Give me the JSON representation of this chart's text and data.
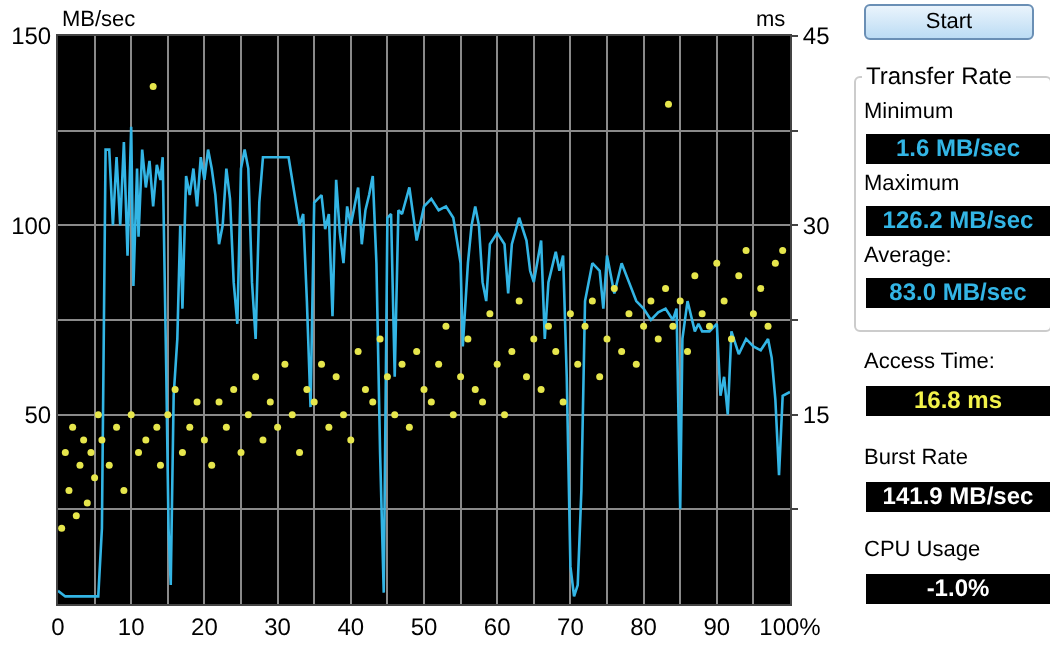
{
  "chart_data": [
    {
      "type": "line",
      "ylabel": "MB/sec",
      "y2label": "ms",
      "grid": true,
      "legend": false,
      "xlim": [
        0,
        100
      ],
      "xticks": [
        0,
        {
          "value": 5,
          "label": null
        },
        10,
        {
          "value": 15,
          "label": null
        },
        20,
        {
          "value": 25,
          "label": null
        },
        30,
        {
          "value": 35,
          "label": null
        },
        40,
        {
          "value": 45,
          "label": null
        },
        50,
        {
          "value": 55,
          "label": null
        },
        60,
        {
          "value": 65,
          "label": null
        },
        70,
        {
          "value": 75,
          "label": null
        },
        80,
        {
          "value": 85,
          "label": null
        },
        90,
        {
          "value": 95,
          "label": null
        },
        {
          "value": 100,
          "label": "100%"
        }
      ],
      "ylim": [
        0,
        150
      ],
      "yticks": [
        {
          "value": 25,
          "label": null
        },
        50,
        {
          "value": 75,
          "label": null
        },
        100,
        {
          "value": 125,
          "label": null
        },
        150
      ],
      "y2lim": [
        0,
        45
      ],
      "y2ticks": [
        {
          "value": 7.5,
          "label": null
        },
        15,
        {
          "value": 22.5,
          "label": null
        },
        30,
        {
          "value": 37.5,
          "label": null
        },
        45
      ],
      "series": [
        {
          "type": "line",
          "color": "#33b5e5",
          "marker": "none",
          "line_style": "solid",
          "x": [
            0,
            1,
            5.5,
            6,
            6.5,
            7,
            7.5,
            8,
            8.5,
            9,
            9.5,
            10,
            10.3,
            10.8,
            11,
            11.5,
            12,
            12.5,
            13,
            13.5,
            14,
            14.3,
            14.8,
            15.1,
            15.4,
            15.8,
            16.3,
            16.7,
            17,
            17.5,
            18,
            18.5,
            19,
            19.5,
            20,
            20.5,
            21,
            21.5,
            22,
            22.5,
            23,
            23.5,
            24,
            24.5,
            25,
            25.5,
            26,
            26.5,
            27,
            27.5,
            28,
            31.5,
            32.5,
            33,
            33.5,
            34,
            34.5,
            35,
            35.5,
            36,
            36.5,
            37,
            37.5,
            38,
            38.5,
            39,
            39.5,
            40,
            40.5,
            41,
            41.5,
            42,
            42.5,
            43,
            43.5,
            44,
            44.5,
            45,
            45.5,
            46,
            46.5,
            47,
            48,
            49,
            50,
            51,
            52,
            53,
            54,
            55,
            55.3,
            56,
            56.5,
            57,
            57.5,
            58,
            58.5,
            59,
            60,
            61,
            61.5,
            62,
            63,
            64,
            64.5,
            65,
            66,
            66.5,
            67,
            68,
            68.5,
            69,
            69.5,
            70,
            70.5,
            71,
            71.5,
            72,
            73,
            74,
            74.5,
            75,
            76,
            77,
            78,
            79,
            80,
            81,
            82,
            83,
            84,
            84.5,
            85,
            85.3,
            86,
            87,
            87.5,
            88,
            89,
            90,
            90.5,
            91,
            91.5,
            92,
            93,
            94,
            95,
            96,
            97,
            97.5,
            98,
            98.5,
            99,
            100
          ],
          "values": [
            3.5,
            2,
            2,
            20,
            120,
            120,
            100,
            118,
            100,
            122,
            92,
            126,
            84,
            115,
            97,
            120,
            110,
            117,
            105,
            116,
            112,
            118,
            60,
            20,
            5,
            55,
            70,
            100,
            78,
            113,
            108,
            115,
            105,
            118,
            112,
            120,
            115,
            108,
            95,
            100,
            115,
            107,
            85,
            74,
            115,
            120,
            115,
            85,
            70,
            106,
            118,
            118,
            106,
            100,
            103,
            80,
            52,
            106,
            107,
            108,
            99,
            103,
            76,
            112,
            98,
            90,
            105,
            100,
            105,
            110,
            95,
            104,
            108,
            113,
            90,
            40,
            3,
            102,
            103,
            60,
            104,
            103,
            110,
            96,
            105,
            107,
            104,
            105,
            102,
            90,
            68,
            90,
            100,
            105,
            100,
            85,
            80,
            95,
            98,
            95,
            82,
            95,
            102,
            96,
            88,
            85,
            96,
            70,
            85,
            93,
            88,
            92,
            60,
            10,
            2,
            5,
            30,
            80,
            90,
            88,
            78,
            92,
            82,
            90,
            85,
            80,
            78,
            75,
            77,
            78,
            75,
            78,
            25,
            70,
            80,
            72,
            74,
            72,
            72,
            74,
            55,
            60,
            50,
            72,
            66,
            70,
            68,
            67,
            70,
            65,
            54,
            34,
            55,
            56
          ]
        },
        {
          "type": "scatter",
          "axis": "y2",
          "color": "#e6e64c",
          "marker": "circle",
          "x": [
            0.5,
            1,
            1.5,
            2,
            2.5,
            3,
            3.5,
            4,
            4.5,
            5,
            5.5,
            6,
            7,
            8,
            9,
            10,
            11,
            12,
            13,
            13.5,
            14,
            15,
            16,
            17,
            18,
            19,
            20,
            21,
            22,
            23,
            24,
            25,
            26,
            27,
            28,
            29,
            30,
            31,
            32,
            33,
            34,
            35,
            36,
            37,
            38,
            39,
            40,
            41,
            42,
            43,
            44,
            45,
            46,
            47,
            48,
            49,
            50,
            51,
            52,
            53,
            54,
            55,
            56,
            57,
            58,
            59,
            60,
            61,
            62,
            63,
            64,
            65,
            66,
            67,
            68,
            69,
            70,
            71,
            72,
            73,
            74,
            75,
            76,
            77,
            78,
            79,
            80,
            81,
            82,
            83,
            83.4,
            84,
            85,
            86,
            87,
            88,
            89,
            90,
            91,
            92,
            93,
            94,
            95,
            96,
            97,
            98,
            99
          ],
          "values": [
            6,
            12,
            9,
            14,
            7,
            11,
            13,
            8,
            12,
            10,
            15,
            13,
            11,
            14,
            9,
            15,
            12,
            13,
            41,
            14,
            11,
            15,
            17,
            12,
            14,
            16,
            13,
            11,
            16,
            14,
            17,
            12,
            15,
            18,
            13,
            16,
            14,
            19,
            15,
            12,
            17,
            16,
            19,
            14,
            18,
            15,
            13,
            20,
            17,
            16,
            21,
            18,
            15,
            19,
            14,
            20,
            17,
            16,
            19,
            22,
            15,
            18,
            21,
            17,
            16,
            23,
            19,
            15,
            20,
            24,
            18,
            21,
            17,
            22,
            20,
            16,
            23,
            19,
            22,
            24,
            18,
            21,
            25,
            20,
            23,
            19,
            22,
            24,
            21,
            25,
            39.6,
            22,
            24,
            20,
            26,
            23,
            22,
            27,
            24,
            21,
            26,
            28,
            23,
            25,
            22,
            27,
            28
          ]
        }
      ]
    },
    {
      "type": "other",
      "annotations": [
        "Start",
        "Transfer Rate",
        "Minimum",
        "1.6 MB/sec",
        "Maximum",
        "126.2 MB/sec",
        "Average:",
        "83.0 MB/sec",
        "Access Time:",
        "16.8 ms",
        "Burst Rate",
        "141.9 MB/sec",
        "CPU Usage",
        "-1.0%"
      ]
    }
  ]
}
